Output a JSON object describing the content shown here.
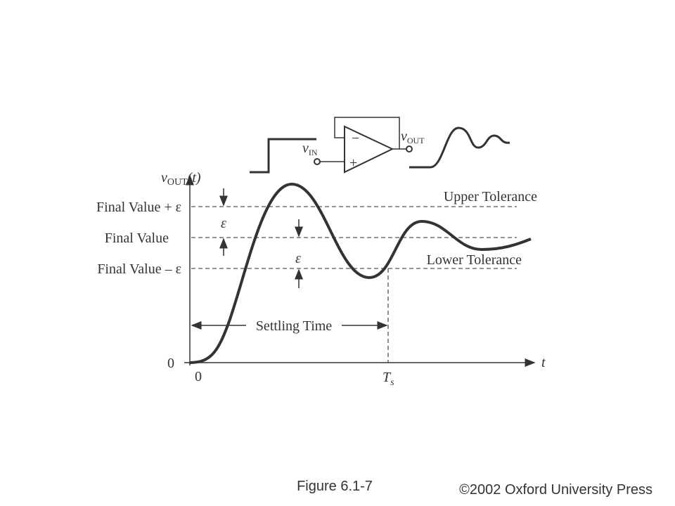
{
  "axis": {
    "y_label": {
      "v": "v",
      "sub": "OUT",
      "arg": "(t)"
    },
    "y_zero": "0",
    "x_zero": "0",
    "x_label": "t",
    "ts": {
      "main": "T",
      "sub": "s"
    }
  },
  "levels": {
    "upper": "Final Value + ε",
    "final": "Final Value",
    "lower": "Final Value – ε"
  },
  "tolerances": {
    "upper": "Upper Tolerance",
    "lower": "Lower Tolerance"
  },
  "epsilons": [
    "ε",
    "ε"
  ],
  "settling_time": "Settling Time",
  "circuit": {
    "vin": {
      "v": "v",
      "sub": "IN"
    },
    "vout": {
      "v": "v",
      "sub": "OUT"
    },
    "minus": "−",
    "plus": "+"
  },
  "caption": "Figure 6.1-7",
  "copyright": "©2002 Oxford University Press"
}
